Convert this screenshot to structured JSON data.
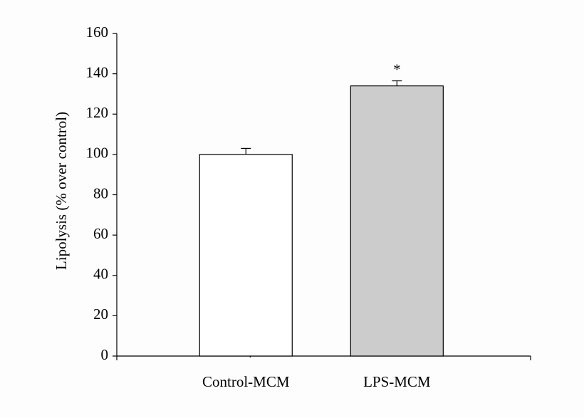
{
  "chart_data": {
    "type": "bar",
    "y_label": "Lipolysis (% over control)",
    "categories": [
      "Control-MCM",
      "LPS-MCM"
    ],
    "values": [
      100,
      134
    ],
    "errors": [
      3,
      2.5
    ],
    "colors": [
      "#ffffff",
      "#cccccc"
    ],
    "annotations": [
      {
        "text": "*",
        "category": "LPS-MCM"
      }
    ],
    "ylim": [
      0,
      160
    ],
    "yticks": [
      0,
      20,
      40,
      60,
      80,
      100,
      120,
      140,
      160
    ],
    "grid": false
  }
}
